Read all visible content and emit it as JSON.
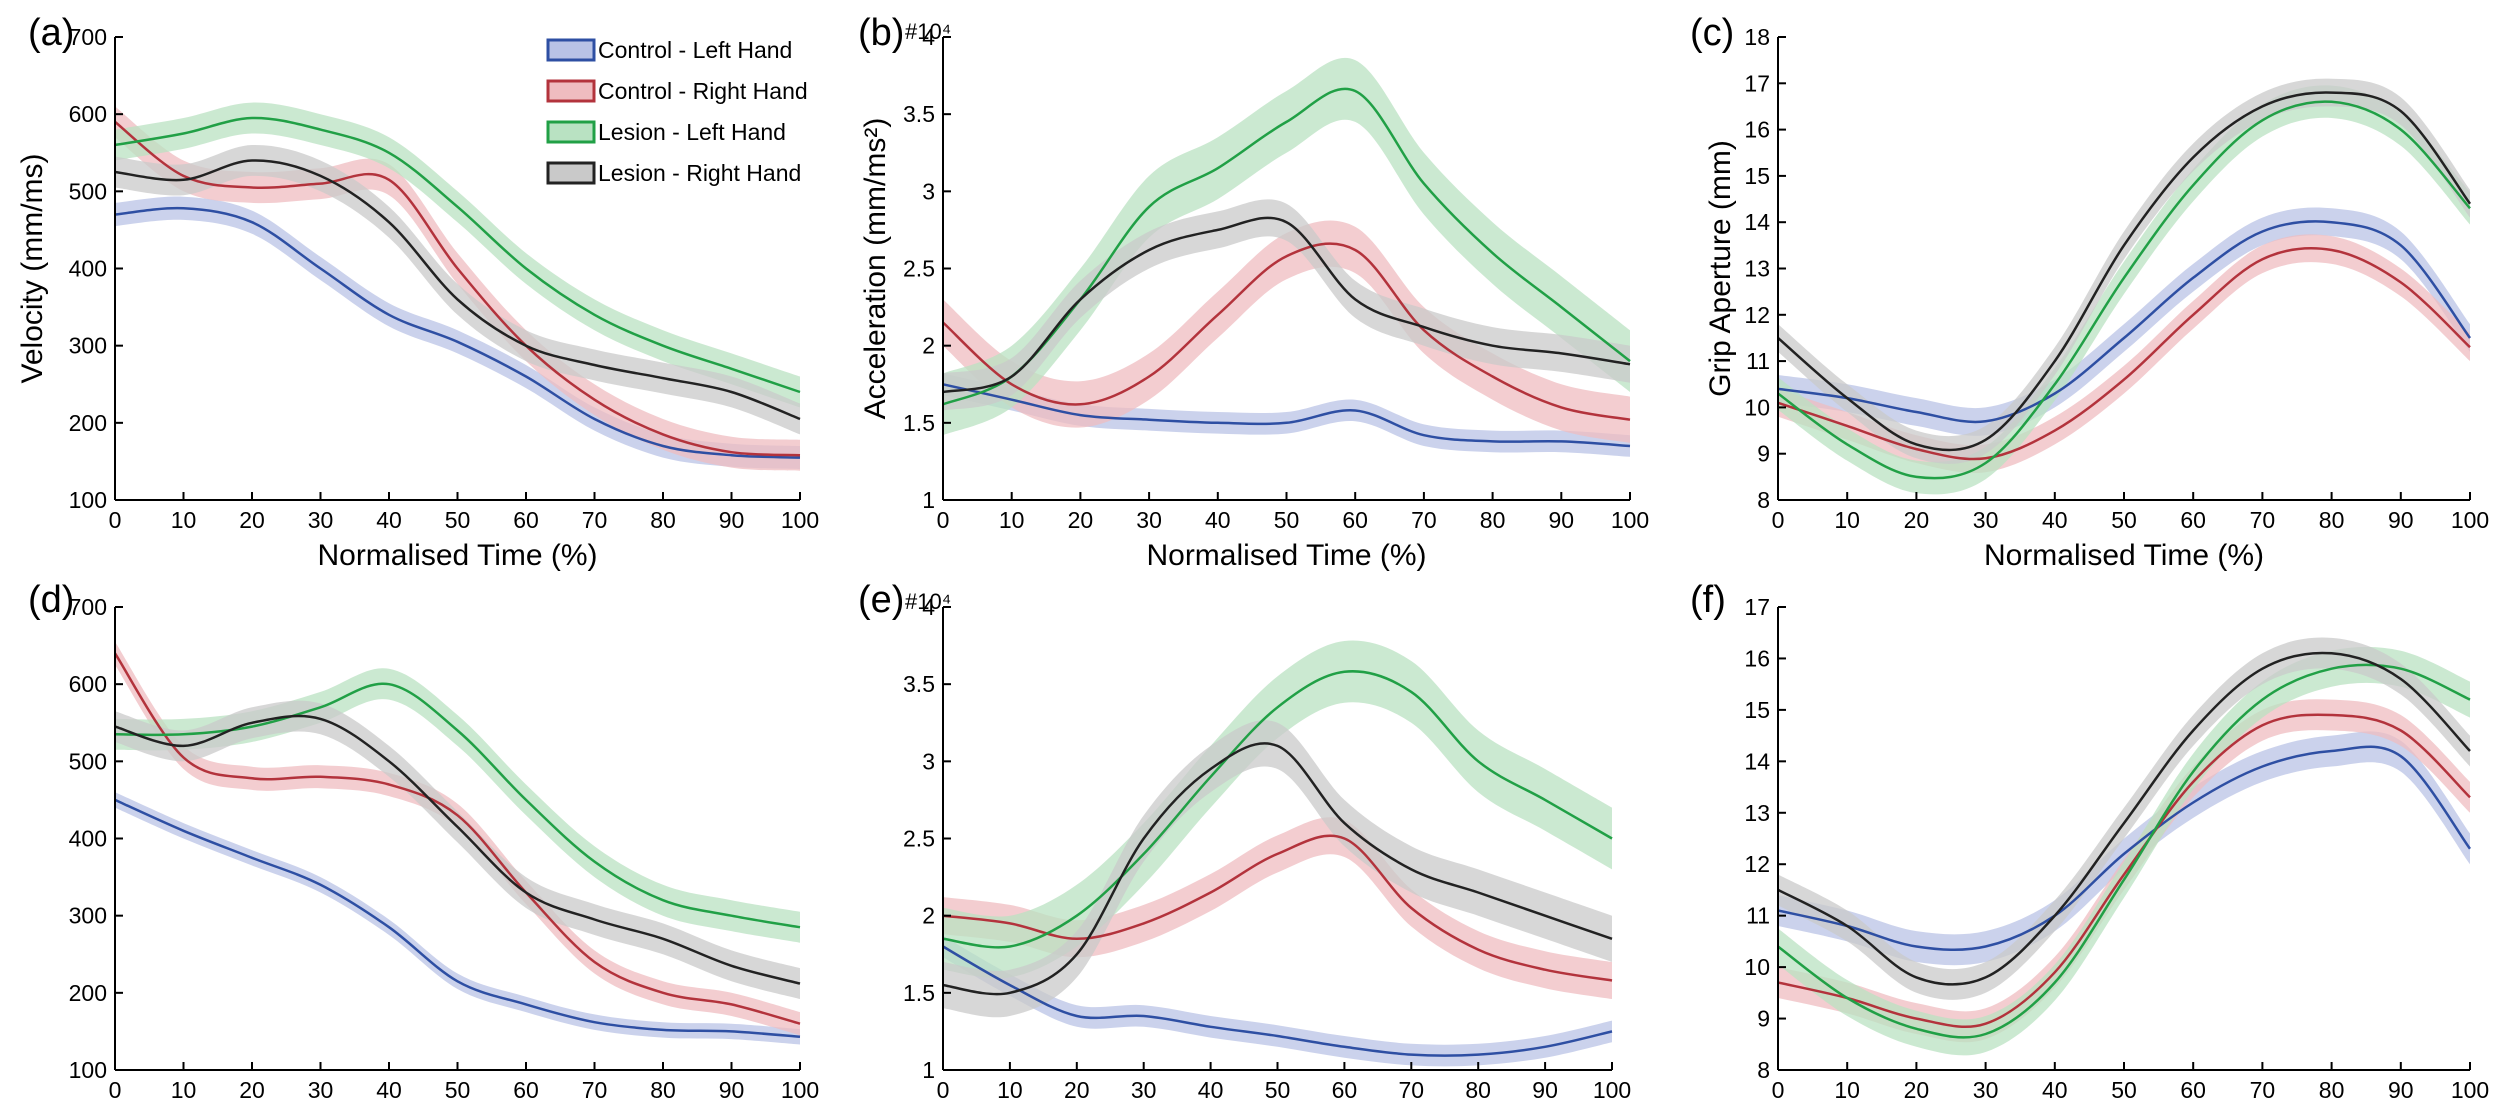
{
  "figure": {
    "legend": [
      {
        "name": "Control - Left Hand",
        "color": "#2e4fa3",
        "fill": "#b9c3e6"
      },
      {
        "name": "Control - Right Hand",
        "color": "#b3333c",
        "fill": "#efbcc0"
      },
      {
        "name": "Lesion - Left Hand",
        "color": "#21a046",
        "fill": "#b9e2c2"
      },
      {
        "name": "Lesion - Right Hand",
        "color": "#222222",
        "fill": "#c9c9c9"
      }
    ]
  },
  "chart_data": [
    {
      "panel": "(a)",
      "type": "line",
      "ylabel": "Velocity (mm/ms)",
      "xlabel": "Normalised Time (%)",
      "xlim": [
        0,
        100
      ],
      "ylim": [
        100,
        700
      ],
      "xticks": [
        "0",
        "10",
        "20",
        "30",
        "40",
        "50",
        "60",
        "70",
        "80",
        "90",
        "100"
      ],
      "yticks": [
        "100",
        "200",
        "300",
        "400",
        "500",
        "600",
        "700"
      ],
      "exponent": "",
      "legend": true,
      "x": [
        0,
        10,
        20,
        30,
        40,
        50,
        60,
        70,
        80,
        90,
        100
      ],
      "series": [
        {
          "name": "Control - Left Hand",
          "values": [
            470,
            478,
            460,
            400,
            340,
            305,
            260,
            205,
            170,
            158,
            155
          ],
          "band": 15
        },
        {
          "name": "Control - Right Hand",
          "values": [
            590,
            520,
            505,
            510,
            515,
            400,
            300,
            230,
            185,
            162,
            158
          ],
          "band": 20
        },
        {
          "name": "Lesion - Left Hand",
          "values": [
            560,
            575,
            595,
            580,
            550,
            480,
            400,
            340,
            300,
            270,
            240
          ],
          "band": 20
        },
        {
          "name": "Lesion - Right Hand",
          "values": [
            525,
            515,
            540,
            520,
            460,
            360,
            300,
            275,
            258,
            240,
            205
          ],
          "band": 20
        }
      ]
    },
    {
      "panel": "(b)",
      "type": "line",
      "ylabel": "Acceleration (mm/ms²)",
      "xlabel": "Normalised Time (%)",
      "xlim": [
        0,
        100
      ],
      "ylim": [
        1,
        4
      ],
      "xticks": [
        "0",
        "10",
        "20",
        "30",
        "40",
        "50",
        "60",
        "70",
        "80",
        "90",
        "100"
      ],
      "yticks": [
        "1",
        "1.5",
        "2",
        "2.5",
        "3",
        "3.5",
        "4"
      ],
      "exponent": "#10⁴",
      "legend": false,
      "x": [
        0,
        10,
        20,
        30,
        40,
        50,
        60,
        70,
        80,
        90,
        100
      ],
      "series": [
        {
          "name": "Control - Left Hand",
          "values": [
            1.75,
            1.65,
            1.55,
            1.52,
            1.5,
            1.5,
            1.58,
            1.42,
            1.38,
            1.38,
            1.35
          ],
          "band": 0.07
        },
        {
          "name": "Control - Right Hand",
          "values": [
            2.15,
            1.75,
            1.62,
            1.8,
            2.2,
            2.58,
            2.62,
            2.1,
            1.8,
            1.6,
            1.52
          ],
          "band": 0.15
        },
        {
          "name": "Lesion - Left Hand",
          "values": [
            1.62,
            1.8,
            2.3,
            2.9,
            3.15,
            3.45,
            3.65,
            3.05,
            2.6,
            2.25,
            1.9
          ],
          "band": 0.2
        },
        {
          "name": "Lesion - Right Hand",
          "values": [
            1.7,
            1.8,
            2.3,
            2.62,
            2.75,
            2.8,
            2.3,
            2.12,
            2.0,
            1.95,
            1.88
          ],
          "band": 0.12
        }
      ]
    },
    {
      "panel": "(c)",
      "type": "line",
      "ylabel": "Grip Aperture (mm)",
      "xlabel": "Normalised Time (%)",
      "xlim": [
        0,
        100
      ],
      "ylim": [
        8,
        18
      ],
      "xticks": [
        "0",
        "10",
        "20",
        "30",
        "40",
        "50",
        "60",
        "70",
        "80",
        "90",
        "100"
      ],
      "yticks": [
        "8",
        "9",
        "10",
        "11",
        "12",
        "13",
        "14",
        "15",
        "16",
        "17",
        "18"
      ],
      "exponent": "",
      "legend": false,
      "x": [
        0,
        10,
        20,
        30,
        40,
        50,
        60,
        70,
        80,
        90,
        100
      ],
      "series": [
        {
          "name": "Control - Left Hand",
          "values": [
            10.4,
            10.2,
            9.9,
            9.7,
            10.3,
            11.5,
            12.8,
            13.8,
            14.0,
            13.5,
            11.5
          ],
          "band": 0.3
        },
        {
          "name": "Control - Right Hand",
          "values": [
            10.1,
            9.6,
            9.1,
            8.9,
            9.5,
            10.6,
            12.0,
            13.2,
            13.4,
            12.7,
            11.3
          ],
          "band": 0.3
        },
        {
          "name": "Lesion - Left Hand",
          "values": [
            10.3,
            9.2,
            8.5,
            8.8,
            10.5,
            12.8,
            14.8,
            16.2,
            16.6,
            16.0,
            14.3
          ],
          "band": 0.35
        },
        {
          "name": "Lesion - Right Hand",
          "values": [
            11.5,
            10.2,
            9.2,
            9.3,
            11.0,
            13.5,
            15.4,
            16.5,
            16.8,
            16.4,
            14.4
          ],
          "band": 0.3
        }
      ]
    },
    {
      "panel": "(d)",
      "type": "line",
      "ylabel": "",
      "xlabel": "",
      "xlim": [
        0,
        100
      ],
      "ylim": [
        100,
        700
      ],
      "xticks": [
        "0",
        "10",
        "20",
        "30",
        "40",
        "50",
        "60",
        "70",
        "80",
        "90",
        "100"
      ],
      "yticks": [
        "100",
        "200",
        "300",
        "400",
        "500",
        "600",
        "700"
      ],
      "exponent": "",
      "legend": false,
      "x": [
        0,
        10,
        20,
        30,
        40,
        50,
        60,
        70,
        80,
        90,
        100
      ],
      "series": [
        {
          "name": "Control - Left Hand",
          "values": [
            450,
            410,
            375,
            340,
            285,
            215,
            185,
            162,
            152,
            150,
            143
          ],
          "band": 10
        },
        {
          "name": "Control - Right Hand",
          "values": [
            640,
            505,
            478,
            480,
            470,
            430,
            330,
            240,
            200,
            185,
            160
          ],
          "band": 15
        },
        {
          "name": "Lesion - Left Hand",
          "values": [
            535,
            535,
            545,
            570,
            600,
            540,
            450,
            370,
            320,
            300,
            285
          ],
          "band": 20
        },
        {
          "name": "Lesion - Right Hand",
          "values": [
            545,
            520,
            550,
            555,
            500,
            415,
            330,
            295,
            270,
            235,
            212
          ],
          "band": 20
        }
      ]
    },
    {
      "panel": "(e)",
      "type": "line",
      "ylabel": "",
      "xlabel": "",
      "xlim": [
        0,
        100
      ],
      "ylim": [
        1,
        4
      ],
      "xticks": [
        "0",
        "10",
        "20",
        "30",
        "40",
        "50",
        "60",
        "70",
        "80",
        "90",
        "100"
      ],
      "yticks": [
        "1",
        "1.5",
        "2",
        "2.5",
        "3",
        "3.5",
        "4"
      ],
      "exponent": "#10⁴",
      "legend": false,
      "x": [
        0,
        10,
        20,
        30,
        40,
        50,
        60,
        70,
        80,
        90,
        100
      ],
      "series": [
        {
          "name": "Control - Left Hand",
          "values": [
            1.8,
            1.55,
            1.35,
            1.35,
            1.28,
            1.22,
            1.15,
            1.1,
            1.1,
            1.15,
            1.25
          ],
          "band": 0.07
        },
        {
          "name": "Control - Right Hand",
          "values": [
            2.0,
            1.95,
            1.85,
            1.95,
            2.15,
            2.4,
            2.5,
            2.05,
            1.78,
            1.65,
            1.58
          ],
          "band": 0.12
        },
        {
          "name": "Lesion - Left Hand",
          "values": [
            1.85,
            1.8,
            2.0,
            2.4,
            2.9,
            3.35,
            3.58,
            3.45,
            3.0,
            2.75,
            2.5
          ],
          "band": 0.2
        },
        {
          "name": "Lesion - Right Hand",
          "values": [
            1.55,
            1.5,
            1.75,
            2.5,
            2.95,
            3.1,
            2.6,
            2.3,
            2.15,
            2.0,
            1.85
          ],
          "band": 0.15
        }
      ]
    },
    {
      "panel": "(f)",
      "type": "line",
      "ylabel": "",
      "xlabel": "",
      "xlim": [
        0,
        100
      ],
      "ylim": [
        8,
        17
      ],
      "xticks": [
        "0",
        "10",
        "20",
        "30",
        "40",
        "50",
        "60",
        "70",
        "80",
        "90",
        "100"
      ],
      "yticks": [
        "8",
        "9",
        "10",
        "11",
        "12",
        "13",
        "14",
        "15",
        "16",
        "17"
      ],
      "exponent": "",
      "legend": false,
      "x": [
        0,
        10,
        20,
        30,
        40,
        50,
        60,
        70,
        80,
        90,
        100
      ],
      "series": [
        {
          "name": "Control - Left Hand",
          "values": [
            11.1,
            10.8,
            10.4,
            10.4,
            11.0,
            12.2,
            13.2,
            13.9,
            14.2,
            14.1,
            12.3
          ],
          "band": 0.3
        },
        {
          "name": "Control - Right Hand",
          "values": [
            9.7,
            9.4,
            9.0,
            8.9,
            9.9,
            11.8,
            13.6,
            14.7,
            14.9,
            14.6,
            13.3
          ],
          "band": 0.3
        },
        {
          "name": "Lesion - Left Hand",
          "values": [
            10.4,
            9.4,
            8.8,
            8.7,
            9.7,
            11.7,
            13.8,
            15.2,
            15.8,
            15.8,
            15.2
          ],
          "band": 0.35
        },
        {
          "name": "Lesion - Right Hand",
          "values": [
            11.5,
            10.8,
            9.8,
            9.8,
            11.0,
            12.8,
            14.6,
            15.8,
            16.1,
            15.6,
            14.2
          ],
          "band": 0.3
        }
      ]
    }
  ]
}
